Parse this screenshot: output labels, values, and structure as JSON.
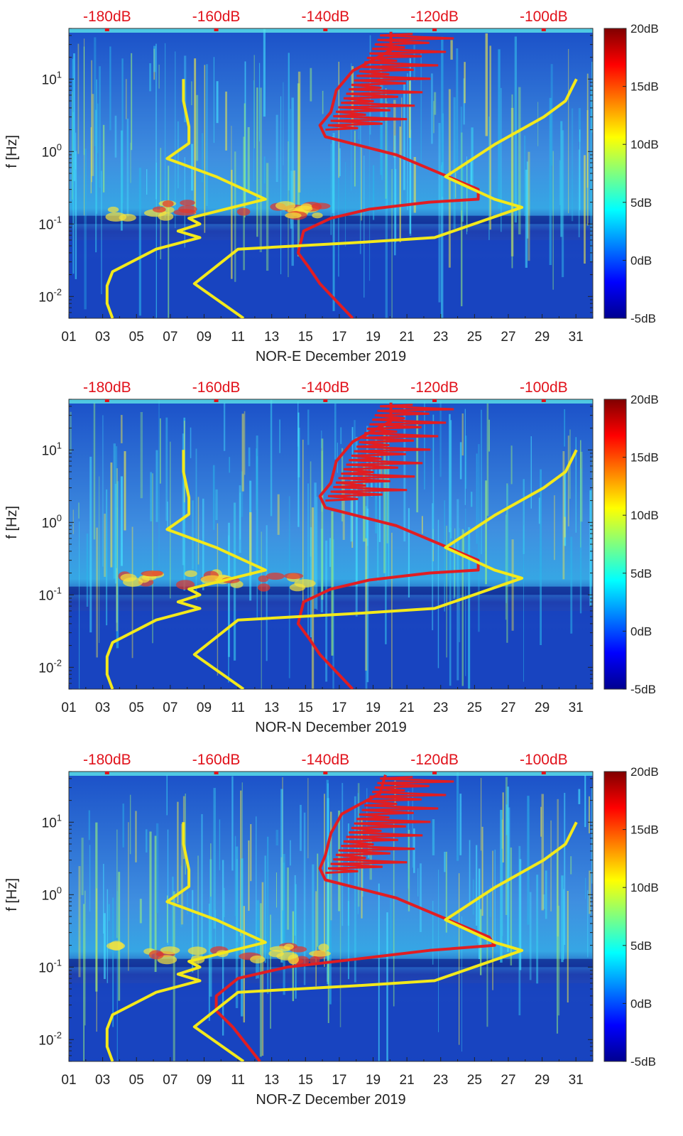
{
  "chart_data": [
    {
      "type": "heatmap",
      "title": "",
      "xlabel": "NOR-E December 2019",
      "ylabel": "f [Hz]",
      "x_ticks": [
        "01",
        "03",
        "05",
        "07",
        "09",
        "11",
        "13",
        "15",
        "17",
        "19",
        "21",
        "23",
        "25",
        "27",
        "29",
        "31"
      ],
      "x_tick_days": [
        1,
        3,
        5,
        7,
        9,
        11,
        13,
        15,
        17,
        19,
        21,
        23,
        25,
        27,
        29,
        31
      ],
      "xlim": [
        1,
        32
      ],
      "ylim": [
        0.005,
        50
      ],
      "y_scale": "log",
      "y_ticks": [
        {
          "label": "10",
          "exp": "-2",
          "value": 0.01
        },
        {
          "label": "10",
          "exp": "-1",
          "value": 0.1
        },
        {
          "label": "10",
          "exp": "0",
          "value": 1
        },
        {
          "label": "10",
          "exp": "1",
          "value": 10
        }
      ],
      "top_axis": {
        "labels": [
          "-180dB",
          "-160dB",
          "-140dB",
          "-120dB",
          "-100dB"
        ],
        "values": [
          -180,
          -160,
          -140,
          -120,
          -100
        ],
        "range": [
          -187,
          -91
        ]
      },
      "colorbar": {
        "labels": [
          "20dB",
          "15dB",
          "10dB",
          "5dB",
          "0dB",
          "-5dB"
        ],
        "values": [
          20,
          15,
          10,
          5,
          0,
          -5
        ],
        "range": [
          -5,
          20
        ]
      },
      "series": [
        {
          "name": "red-model-curve",
          "color": "#e11d22",
          "x_db": [
            -135,
            -141,
            -143,
            -145,
            -144,
            -139,
            -132,
            -121,
            -112,
            -112,
            -127,
            -140,
            -141,
            -139,
            -138,
            -135,
            -128,
            -128
          ],
          "y_hz": [
            0.005,
            0.015,
            0.025,
            0.04,
            0.08,
            0.12,
            0.16,
            0.2,
            0.22,
            0.3,
            0.9,
            1.6,
            2.3,
            3.5,
            7,
            13,
            25,
            45
          ]
        },
        {
          "name": "yellow-low-model",
          "color": "#f3e91b",
          "x_db": [
            -179,
            -180,
            -180,
            -179,
            -171,
            -163,
            -167,
            -163,
            -165,
            -151,
            -160,
            -169,
            -165,
            -165,
            -166,
            -166
          ],
          "y_hz": [
            0.005,
            0.008,
            0.014,
            0.022,
            0.045,
            0.065,
            0.08,
            0.1,
            0.12,
            0.22,
            0.45,
            0.8,
            1.3,
            2.2,
            5,
            10
          ]
        },
        {
          "name": "yellow-high-model",
          "color": "#f3e91b",
          "x_db": [
            -155,
            -164,
            -156,
            -135,
            -120,
            -104,
            -109,
            -118,
            -109,
            -100,
            -96,
            -94
          ],
          "y_hz": [
            0.005,
            0.015,
            0.045,
            0.055,
            0.065,
            0.17,
            0.22,
            0.45,
            1.25,
            3,
            5,
            10
          ]
        }
      ]
    },
    {
      "type": "heatmap",
      "title": "",
      "xlabel": "NOR-N December 2019",
      "ylabel": "f [Hz]",
      "x_ticks": [
        "01",
        "03",
        "05",
        "07",
        "09",
        "11",
        "13",
        "15",
        "17",
        "19",
        "21",
        "23",
        "25",
        "27",
        "29",
        "31"
      ],
      "x_tick_days": [
        1,
        3,
        5,
        7,
        9,
        11,
        13,
        15,
        17,
        19,
        21,
        23,
        25,
        27,
        29,
        31
      ],
      "xlim": [
        1,
        32
      ],
      "ylim": [
        0.005,
        50
      ],
      "y_scale": "log",
      "y_ticks": [
        {
          "label": "10",
          "exp": "-2",
          "value": 0.01
        },
        {
          "label": "10",
          "exp": "-1",
          "value": 0.1
        },
        {
          "label": "10",
          "exp": "0",
          "value": 1
        },
        {
          "label": "10",
          "exp": "1",
          "value": 10
        }
      ],
      "top_axis": {
        "labels": [
          "-180dB",
          "-160dB",
          "-140dB",
          "-120dB",
          "-100dB"
        ],
        "values": [
          -180,
          -160,
          -140,
          -120,
          -100
        ],
        "range": [
          -187,
          -91
        ]
      },
      "colorbar": {
        "labels": [
          "20dB",
          "15dB",
          "10dB",
          "5dB",
          "0dB",
          "-5dB"
        ],
        "values": [
          20,
          15,
          10,
          5,
          0,
          -5
        ],
        "range": [
          -5,
          20
        ]
      },
      "series": [
        {
          "name": "red-model-curve",
          "color": "#e11d22",
          "x_db": [
            -135,
            -141,
            -143,
            -145,
            -144,
            -139,
            -132,
            -121,
            -112,
            -112,
            -127,
            -140,
            -141,
            -139,
            -138,
            -135,
            -128,
            -128
          ],
          "y_hz": [
            0.005,
            0.015,
            0.025,
            0.04,
            0.08,
            0.12,
            0.16,
            0.2,
            0.22,
            0.3,
            0.9,
            1.6,
            2.3,
            3.5,
            7,
            13,
            25,
            45
          ]
        },
        {
          "name": "yellow-low-model",
          "color": "#f3e91b",
          "x_db": [
            -179,
            -180,
            -180,
            -179,
            -171,
            -163,
            -167,
            -163,
            -165,
            -151,
            -160,
            -169,
            -165,
            -165,
            -166,
            -166
          ],
          "y_hz": [
            0.005,
            0.008,
            0.014,
            0.022,
            0.045,
            0.065,
            0.08,
            0.1,
            0.12,
            0.22,
            0.45,
            0.8,
            1.3,
            2.2,
            5,
            10
          ]
        },
        {
          "name": "yellow-high-model",
          "color": "#f3e91b",
          "x_db": [
            -155,
            -164,
            -156,
            -135,
            -120,
            -104,
            -109,
            -118,
            -109,
            -100,
            -96,
            -94
          ],
          "y_hz": [
            0.005,
            0.015,
            0.045,
            0.055,
            0.065,
            0.17,
            0.22,
            0.45,
            1.25,
            3,
            5,
            10
          ]
        }
      ]
    },
    {
      "type": "heatmap",
      "title": "",
      "xlabel": "NOR-Z December 2019",
      "ylabel": "f [Hz]",
      "x_ticks": [
        "01",
        "03",
        "05",
        "07",
        "09",
        "11",
        "13",
        "15",
        "17",
        "19",
        "21",
        "23",
        "25",
        "27",
        "29",
        "31"
      ],
      "x_tick_days": [
        1,
        3,
        5,
        7,
        9,
        11,
        13,
        15,
        17,
        19,
        21,
        23,
        25,
        27,
        29,
        31
      ],
      "xlim": [
        1,
        32
      ],
      "ylim": [
        0.005,
        50
      ],
      "y_scale": "log",
      "y_ticks": [
        {
          "label": "10",
          "exp": "-2",
          "value": 0.01
        },
        {
          "label": "10",
          "exp": "-1",
          "value": 0.1
        },
        {
          "label": "10",
          "exp": "0",
          "value": 1
        },
        {
          "label": "10",
          "exp": "1",
          "value": 10
        }
      ],
      "top_axis": {
        "labels": [
          "-180dB",
          "-160dB",
          "-140dB",
          "-120dB",
          "-100dB"
        ],
        "values": [
          -180,
          -160,
          -140,
          -120,
          -100
        ],
        "range": [
          -187,
          -91
        ]
      },
      "colorbar": {
        "labels": [
          "20dB",
          "15dB",
          "10dB",
          "5dB",
          "0dB",
          "-5dB"
        ],
        "values": [
          20,
          15,
          10,
          5,
          0,
          -5
        ],
        "range": [
          -5,
          20
        ]
      },
      "series": [
        {
          "name": "red-model-curve",
          "color": "#e11d22",
          "x_db": [
            -152,
            -157,
            -160,
            -160,
            -156,
            -147,
            -134,
            -121,
            -109,
            -110,
            -127,
            -140,
            -141,
            -140,
            -139,
            -137,
            -130,
            -129
          ],
          "y_hz": [
            0.005,
            0.015,
            0.025,
            0.04,
            0.07,
            0.1,
            0.13,
            0.17,
            0.2,
            0.26,
            0.9,
            1.6,
            2.3,
            3.5,
            7,
            13,
            25,
            45
          ]
        },
        {
          "name": "yellow-low-model",
          "color": "#f3e91b",
          "x_db": [
            -179,
            -180,
            -180,
            -179,
            -171,
            -163,
            -167,
            -163,
            -165,
            -151,
            -160,
            -169,
            -165,
            -165,
            -166,
            -166
          ],
          "y_hz": [
            0.005,
            0.008,
            0.014,
            0.022,
            0.045,
            0.065,
            0.08,
            0.1,
            0.12,
            0.22,
            0.45,
            0.8,
            1.3,
            2.2,
            5,
            10
          ]
        },
        {
          "name": "yellow-high-model",
          "color": "#f3e91b",
          "x_db": [
            -155,
            -164,
            -156,
            -135,
            -120,
            -104,
            -109,
            -118,
            -109,
            -100,
            -96,
            -94
          ],
          "y_hz": [
            0.005,
            0.015,
            0.045,
            0.055,
            0.065,
            0.17,
            0.22,
            0.45,
            1.25,
            3,
            5,
            10
          ]
        }
      ]
    }
  ]
}
